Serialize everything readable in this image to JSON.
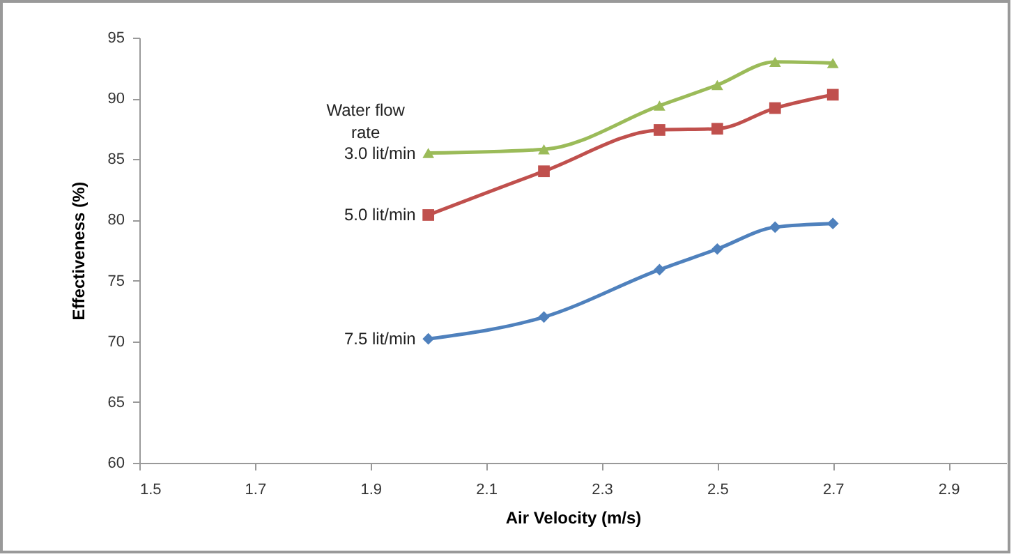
{
  "chart_data": {
    "type": "line",
    "xlabel": "Air Velocity (m/s)",
    "ylabel": "Effectiveness (%)",
    "legend_title": "Water flow rate",
    "x": [
      2.0,
      2.2,
      2.4,
      2.5,
      2.6,
      2.7
    ],
    "series": [
      {
        "name": "3.0 lit/min",
        "color": "#9bbb59",
        "marker": "triangle",
        "values": [
          85.5,
          85.8,
          89.4,
          91.1,
          93.0,
          92.9
        ]
      },
      {
        "name": "5.0 lit/min",
        "color": "#c0504d",
        "marker": "square",
        "values": [
          80.4,
          84.0,
          87.4,
          87.5,
          89.2,
          90.3
        ]
      },
      {
        "name": "7.5 lit/min",
        "color": "#4f81bd",
        "marker": "diamond",
        "values": [
          70.2,
          72.0,
          75.9,
          77.6,
          79.4,
          79.7
        ]
      }
    ],
    "xlim": [
      1.5,
      3.0
    ],
    "xticks": [
      1.5,
      1.7,
      1.9,
      2.1,
      2.3,
      2.5,
      2.7,
      2.9
    ],
    "ylim": [
      60,
      95
    ],
    "yticks": [
      60,
      65,
      70,
      75,
      80,
      85,
      90,
      95
    ],
    "grid": false,
    "legend": false
  }
}
